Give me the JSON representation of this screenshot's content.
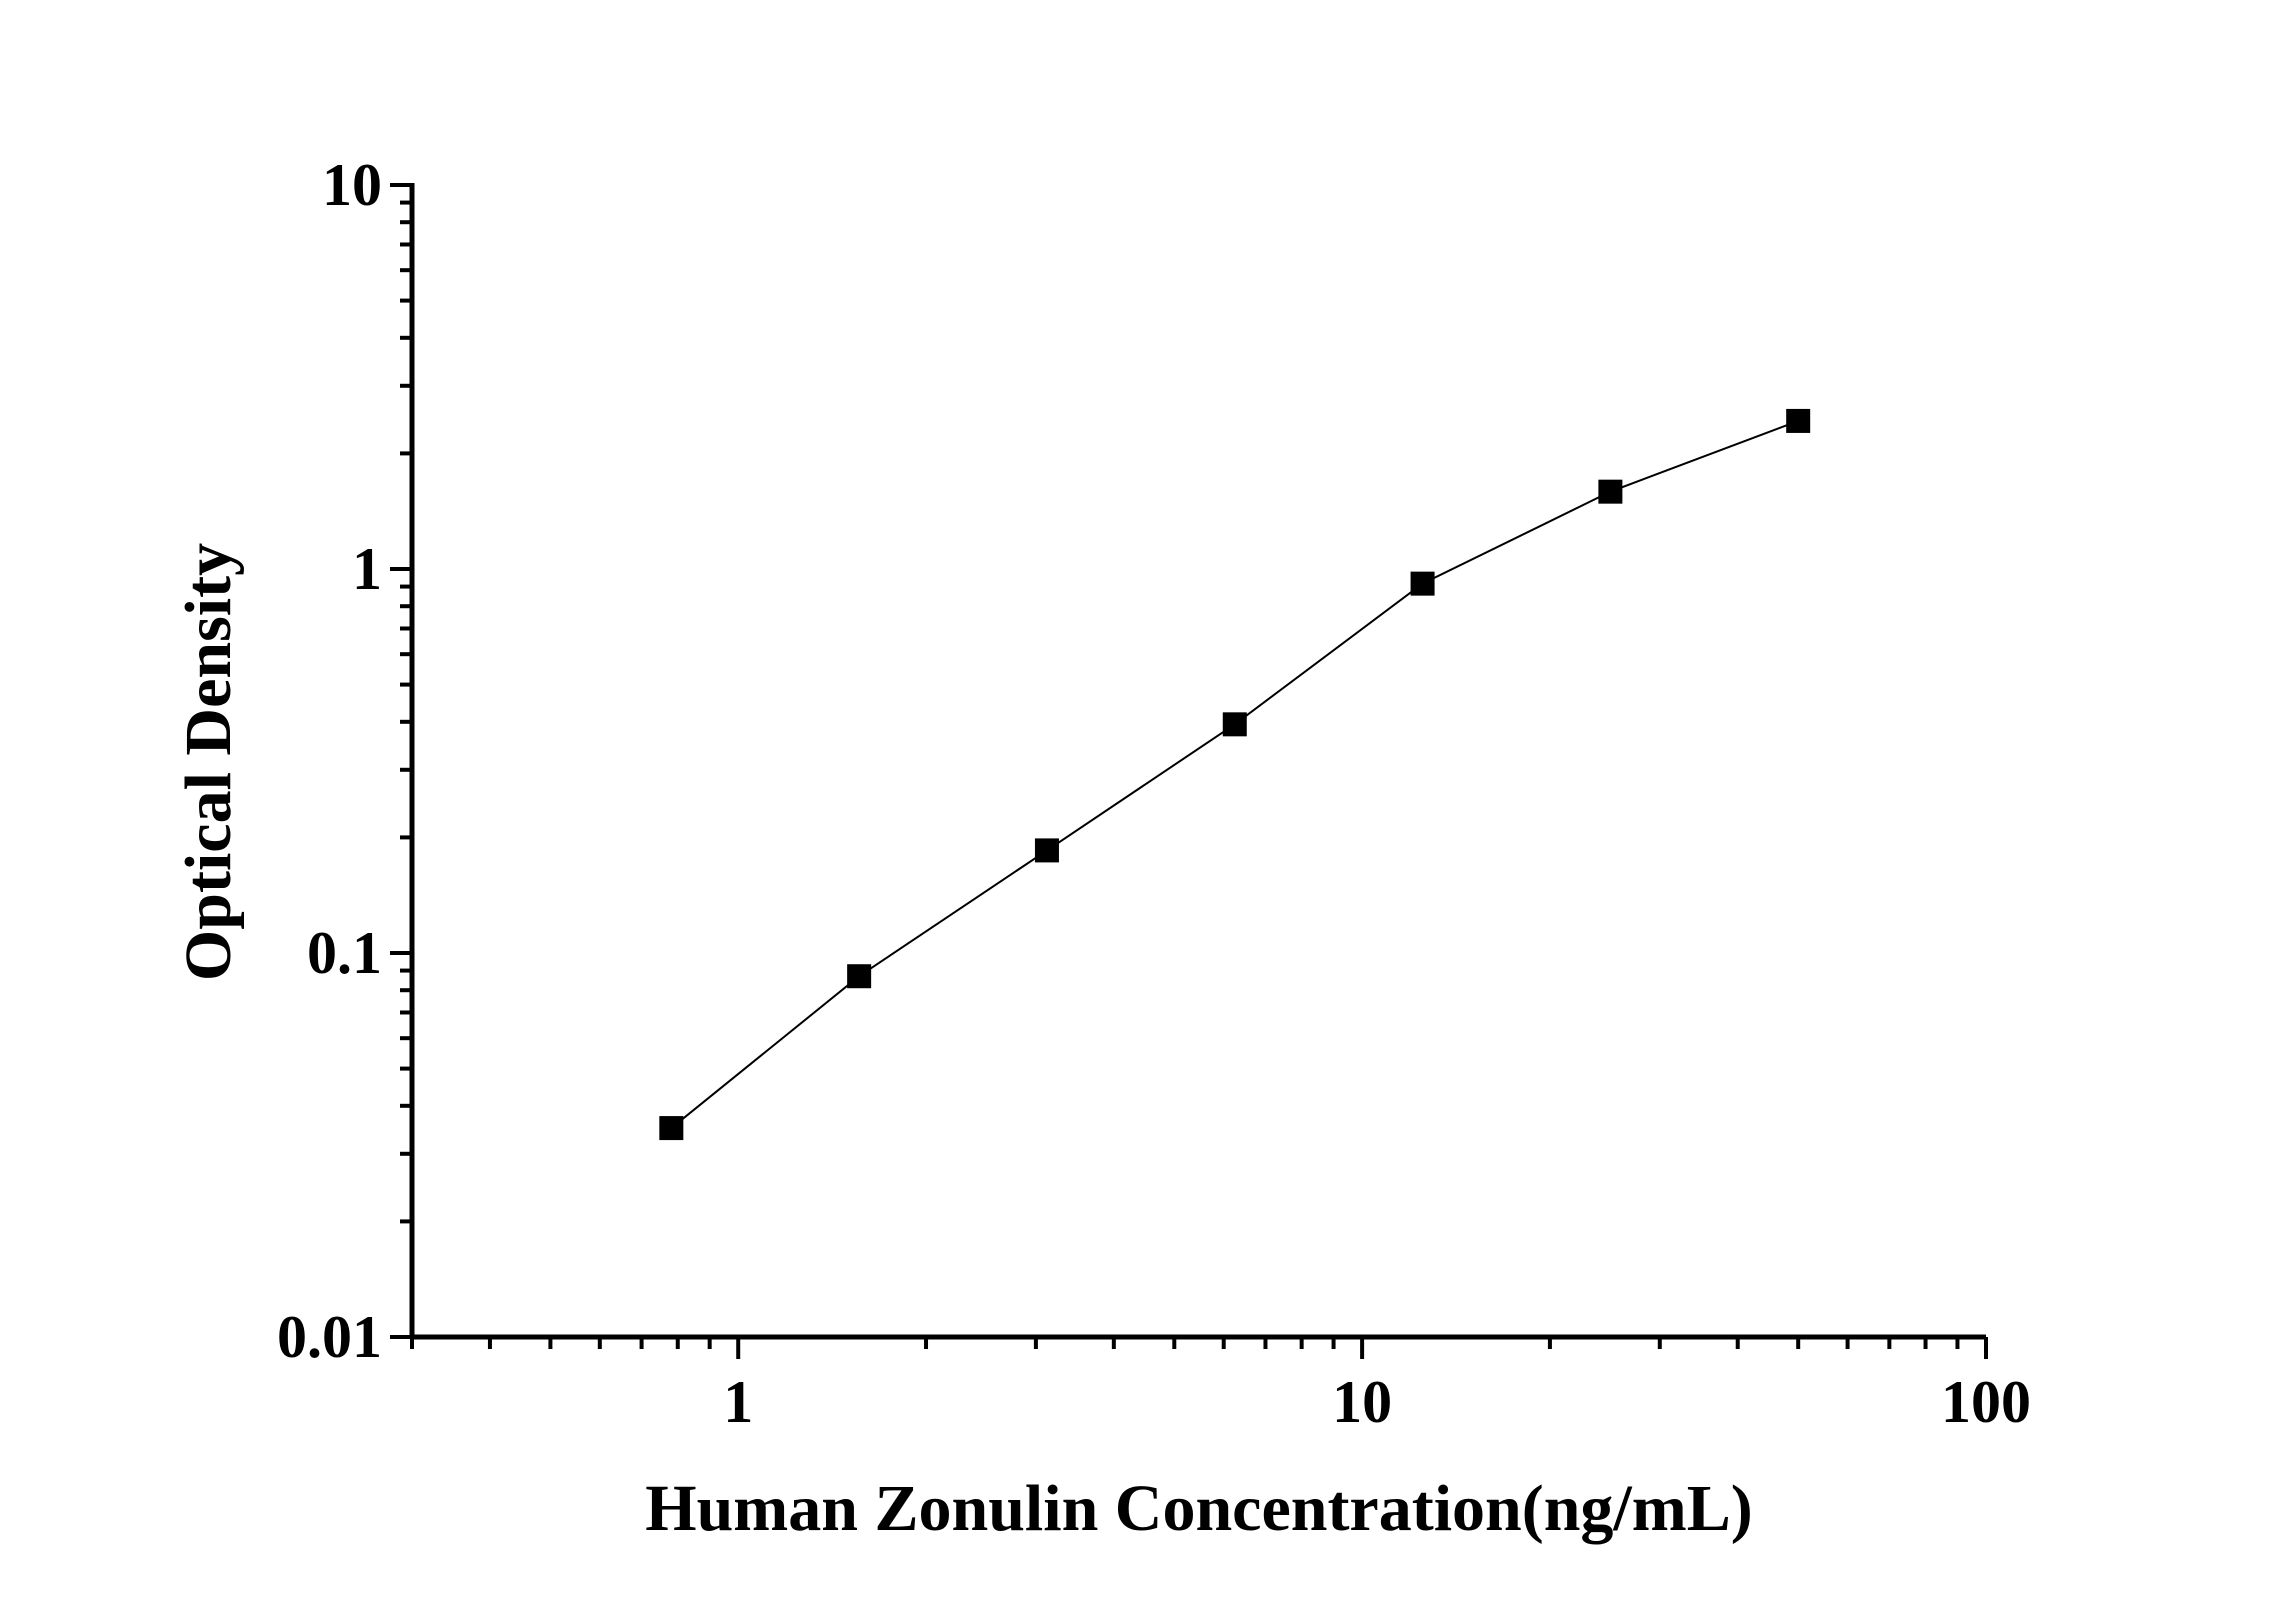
{
  "chart_data": {
    "type": "line",
    "title": "",
    "xlabel": "Human Zonulin Concentration(ng/mL)",
    "ylabel": "Optical Density",
    "xscale": "log",
    "yscale": "log",
    "xlim": [
      0.3,
      100
    ],
    "ylim": [
      0.01,
      10
    ],
    "xticks": [
      {
        "value": 1,
        "label": "1"
      },
      {
        "value": 10,
        "label": "10"
      },
      {
        "value": 100,
        "label": "100"
      }
    ],
    "yticks": [
      {
        "value": 0.01,
        "label": "0.01"
      },
      {
        "value": 0.1,
        "label": "0.1"
      },
      {
        "value": 1,
        "label": "1"
      },
      {
        "value": 10,
        "label": "10"
      }
    ],
    "grid": false,
    "marker": "square",
    "color": "#000000",
    "series": [
      {
        "x": [
          0.78125,
          1.5625,
          3.125,
          6.25,
          12.5,
          25,
          50
        ],
        "y": [
          0.035,
          0.087,
          0.185,
          0.394,
          0.916,
          1.59,
          2.43
        ]
      }
    ]
  }
}
